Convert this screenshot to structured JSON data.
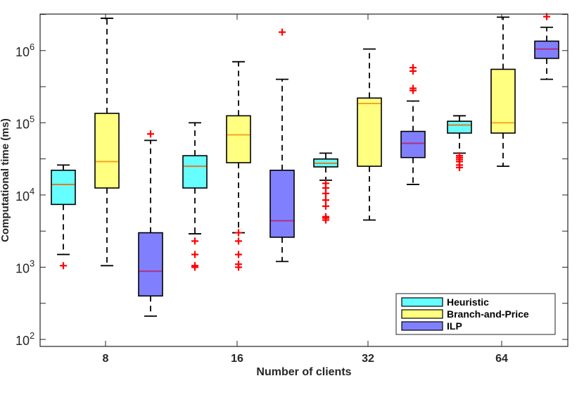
{
  "chart_data": {
    "type": "boxplot",
    "title": "",
    "xlabel": "Number of clients",
    "ylabel": "Computational time (ms)",
    "yscale": "log",
    "ylim": [
      80,
      3200000
    ],
    "categories": [
      "8",
      "16",
      "32",
      "64"
    ],
    "ytick_base": "10",
    "yticks": [
      {
        "value": 100,
        "exponent": "2"
      },
      {
        "value": 1000,
        "exponent": "3"
      },
      {
        "value": 10000,
        "exponent": "4"
      },
      {
        "value": 100000,
        "exponent": "5"
      },
      {
        "value": 1000000,
        "exponent": "6"
      }
    ],
    "legend_position": "bottom-right",
    "series": [
      {
        "name": "Heuristic",
        "fill": "#66ffff",
        "median_color": "#e07a2a",
        "boxes": [
          {
            "whisker_low": 1500,
            "q1": 7400,
            "median": 14000,
            "q3": 22000,
            "whisker_high": 26000,
            "outliers": [
              1050
            ]
          },
          {
            "whisker_low": 2900,
            "q1": 12500,
            "median": 25000,
            "q3": 35000,
            "whisker_high": 100000,
            "outliers": [
              1000,
              1050,
              1500,
              2300
            ]
          },
          {
            "whisker_low": 16000,
            "q1": 24500,
            "median": 27500,
            "q3": 31500,
            "whisker_high": 38000,
            "outliers": [
              4500,
              4800,
              5000,
              7000,
              8500,
              10500,
              12500,
              14500
            ]
          },
          {
            "whisker_low": 38000,
            "q1": 72000,
            "median": 93000,
            "q3": 105000,
            "whisker_high": 125000,
            "outliers": [
              24000,
              26000,
              29000,
              31000,
              33000,
              35000
            ]
          }
        ]
      },
      {
        "name": "Branch-and-Price",
        "fill": "#ffff80",
        "median_color": "#f5a623",
        "boxes": [
          {
            "whisker_low": 1050,
            "q1": 12500,
            "median": 29000,
            "q3": 135000,
            "whisker_high": 2800000,
            "outliers": []
          },
          {
            "whisker_low": 3000,
            "q1": 28000,
            "median": 68000,
            "q3": 125000,
            "whisker_high": 700000,
            "outliers": [
              1000,
              1100,
              1500,
              2300,
              3000
            ]
          },
          {
            "whisker_low": 4500,
            "q1": 25000,
            "median": 185000,
            "q3": 220000,
            "whisker_high": 1050000,
            "outliers": []
          },
          {
            "whisker_low": 25000,
            "q1": 72000,
            "median": 100000,
            "q3": 550000,
            "whisker_high": 2900000,
            "outliers": []
          }
        ]
      },
      {
        "name": "ILP",
        "fill": "#8080ff",
        "median_color": "#b03080",
        "boxes": [
          {
            "whisker_low": 210,
            "q1": 400,
            "median": 880,
            "q3": 3000,
            "whisker_high": 57000,
            "outliers": [
              70000
            ]
          },
          {
            "whisker_low": 1200,
            "q1": 2600,
            "median": 4400,
            "q3": 22000,
            "whisker_high": 400000,
            "outliers": [
              1800000
            ]
          },
          {
            "whisker_low": 14000,
            "q1": 33000,
            "median": 52000,
            "q3": 76000,
            "whisker_high": 200000,
            "outliers": [
              280000,
              300000,
              520000,
              580000
            ]
          },
          {
            "whisker_low": 400000,
            "q1": 780000,
            "median": 1050000,
            "q3": 1350000,
            "whisker_high": 2100000,
            "outliers": [
              2950000
            ]
          }
        ]
      }
    ]
  }
}
